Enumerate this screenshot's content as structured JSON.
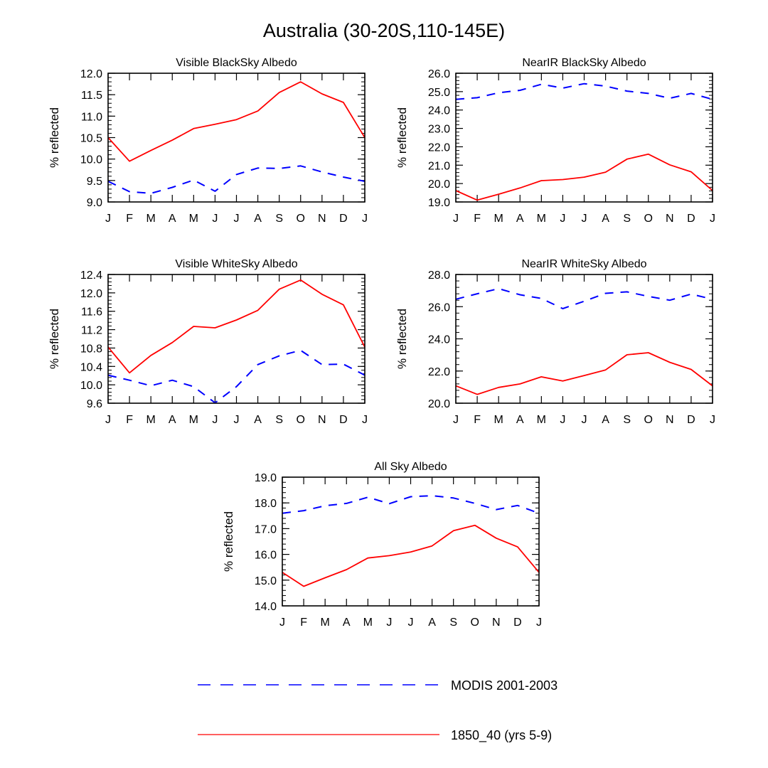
{
  "figure": {
    "title": "Australia (30-20S,110-145E)"
  },
  "legend": {
    "placement": "bottom-center",
    "entries": [
      {
        "label": "MODIS 2001-2003",
        "color": "#0000ff",
        "dash": "dashed"
      },
      {
        "label": "1850_40 (yrs 5-9)",
        "color": "#ff0000",
        "dash": "solid"
      }
    ]
  },
  "chart_data": [
    {
      "type": "line",
      "title": "Visible BlackSky Albedo",
      "ylabel": "% reflected",
      "xlabel": "",
      "categories": [
        "J",
        "F",
        "M",
        "A",
        "M",
        "J",
        "J",
        "A",
        "S",
        "O",
        "N",
        "D",
        "J"
      ],
      "ylim": [
        9.0,
        12.0
      ],
      "yticks": [
        9.0,
        9.5,
        10.0,
        10.5,
        11.0,
        11.5,
        12.0
      ],
      "ytick_labels": [
        "9.0",
        "9.5",
        "10.0",
        "10.5",
        "11.0",
        "11.5",
        "12.0"
      ],
      "series": [
        {
          "name": "MODIS 2001-2003",
          "values": [
            9.48,
            9.24,
            9.2,
            9.34,
            9.51,
            9.25,
            9.64,
            9.79,
            9.78,
            9.84,
            9.7,
            9.58,
            9.48
          ]
        },
        {
          "name": "1850_40 (yrs 5-9)",
          "values": [
            10.5,
            9.95,
            10.2,
            10.44,
            10.71,
            10.81,
            10.92,
            11.12,
            11.55,
            11.8,
            11.52,
            11.32,
            10.5
          ]
        }
      ]
    },
    {
      "type": "line",
      "title": "NearIR BlackSky Albedo",
      "ylabel": "% reflected",
      "xlabel": "",
      "categories": [
        "J",
        "F",
        "M",
        "A",
        "M",
        "J",
        "J",
        "A",
        "S",
        "O",
        "N",
        "D",
        "J"
      ],
      "ylim": [
        19.0,
        26.0
      ],
      "yticks": [
        19,
        20,
        21,
        22,
        23,
        24,
        25,
        26
      ],
      "ytick_labels": [
        "19.0",
        "20.0",
        "21.0",
        "22.0",
        "23.0",
        "24.0",
        "25.0",
        "26.0"
      ],
      "series": [
        {
          "name": "MODIS 2001-2003",
          "values": [
            24.58,
            24.67,
            24.94,
            25.07,
            25.4,
            25.19,
            25.43,
            25.3,
            25.03,
            24.9,
            24.64,
            24.9,
            24.58
          ]
        },
        {
          "name": "1850_40 (yrs 5-9)",
          "values": [
            19.62,
            19.1,
            19.42,
            19.76,
            20.16,
            20.22,
            20.35,
            20.62,
            21.33,
            21.6,
            21.02,
            20.64,
            19.62
          ]
        }
      ]
    },
    {
      "type": "line",
      "title": "Visible WhiteSky Albedo",
      "ylabel": "% reflected",
      "xlabel": "",
      "categories": [
        "J",
        "F",
        "M",
        "A",
        "M",
        "J",
        "J",
        "A",
        "S",
        "O",
        "N",
        "D",
        "J"
      ],
      "ylim": [
        9.6,
        12.4
      ],
      "yticks": [
        9.6,
        10.0,
        10.4,
        10.8,
        11.2,
        11.6,
        12.0,
        12.4
      ],
      "ytick_labels": [
        "9.6",
        "10.0",
        "10.4",
        "10.8",
        "11.2",
        "11.6",
        "12.0",
        "12.4"
      ],
      "series": [
        {
          "name": "MODIS 2001-2003",
          "values": [
            10.21,
            10.1,
            9.98,
            10.1,
            9.96,
            9.61,
            9.96,
            10.44,
            10.63,
            10.75,
            10.44,
            10.45,
            10.21
          ]
        },
        {
          "name": "1850_40 (yrs 5-9)",
          "values": [
            10.82,
            10.26,
            10.64,
            10.92,
            11.27,
            11.24,
            11.41,
            11.62,
            12.08,
            12.28,
            11.97,
            11.74,
            10.82
          ]
        }
      ]
    },
    {
      "type": "line",
      "title": "NearIR WhiteSky Albedo",
      "ylabel": "% reflected",
      "xlabel": "",
      "categories": [
        "J",
        "F",
        "M",
        "A",
        "M",
        "J",
        "J",
        "A",
        "S",
        "O",
        "N",
        "D",
        "J"
      ],
      "ylim": [
        20.0,
        28.0
      ],
      "yticks": [
        20,
        22,
        24,
        26,
        28
      ],
      "ytick_labels": [
        "20.0",
        "22.0",
        "24.0",
        "26.0",
        "28.0"
      ],
      "series": [
        {
          "name": "MODIS 2001-2003",
          "values": [
            26.46,
            26.8,
            27.12,
            26.74,
            26.51,
            25.88,
            26.34,
            26.83,
            26.92,
            26.64,
            26.4,
            26.78,
            26.46
          ]
        },
        {
          "name": "1850_40 (yrs 5-9)",
          "values": [
            21.08,
            20.55,
            20.98,
            21.2,
            21.64,
            21.38,
            21.72,
            22.07,
            23.01,
            23.14,
            22.54,
            22.1,
            21.08
          ]
        }
      ]
    },
    {
      "type": "line",
      "title": "All Sky Albedo",
      "ylabel": "% reflected",
      "xlabel": "",
      "categories": [
        "J",
        "F",
        "M",
        "A",
        "M",
        "J",
        "J",
        "A",
        "S",
        "O",
        "N",
        "D",
        "J"
      ],
      "ylim": [
        14.0,
        19.0
      ],
      "yticks": [
        14,
        15,
        16,
        17,
        18,
        19
      ],
      "ytick_labels": [
        "14.0",
        "15.0",
        "16.0",
        "17.0",
        "18.0",
        "19.0"
      ],
      "series": [
        {
          "name": "MODIS 2001-2003",
          "values": [
            17.6,
            17.7,
            17.89,
            17.98,
            18.22,
            17.97,
            18.24,
            18.28,
            18.19,
            17.98,
            17.74,
            17.9,
            17.6
          ]
        },
        {
          "name": "1850_40 (yrs 5-9)",
          "values": [
            15.3,
            14.76,
            15.09,
            15.41,
            15.86,
            15.95,
            16.09,
            16.33,
            16.92,
            17.13,
            16.63,
            16.29,
            15.3
          ]
        }
      ]
    }
  ]
}
